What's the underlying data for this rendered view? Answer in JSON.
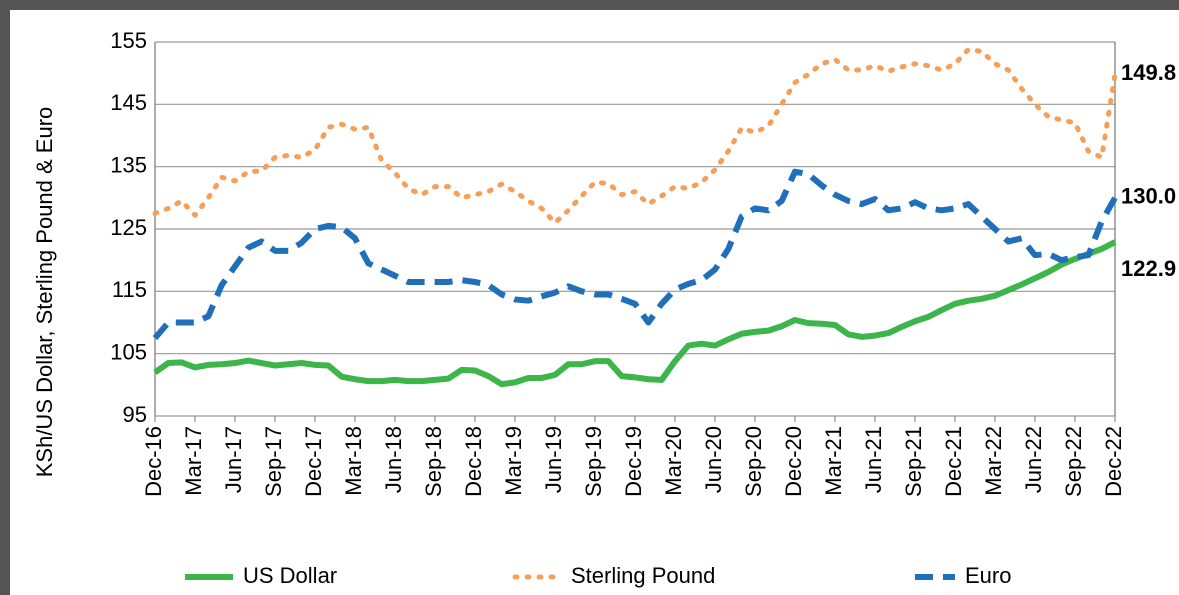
{
  "chart_data": {
    "type": "line",
    "y_label": "KSh/US Dollar, Sterling Pound & Euro",
    "categories": [
      "Dec-16",
      null,
      null,
      "Mar-17",
      null,
      null,
      "Jun-17",
      null,
      null,
      "Sep-17",
      null,
      null,
      "Dec-17",
      null,
      null,
      "Mar-18",
      null,
      null,
      "Jun-18",
      null,
      null,
      "Sep-18",
      null,
      null,
      "Dec-18",
      null,
      null,
      "Mar-19",
      null,
      null,
      "Jun-19",
      null,
      null,
      "Sep-19",
      null,
      null,
      "Dec-19",
      null,
      null,
      "Mar-20",
      null,
      null,
      "Jun-20",
      null,
      null,
      "Sep-20",
      null,
      null,
      "Dec-20",
      null,
      null,
      "Mar-21",
      null,
      null,
      "Jun-21",
      null,
      null,
      "Sep-21",
      null,
      null,
      "Dec-21",
      null,
      null,
      "Mar-22",
      null,
      null,
      "Jun-22",
      null,
      null,
      "Sep-22",
      null,
      null,
      "Dec-22"
    ],
    "series": [
      {
        "name": "US Dollar",
        "color": "#3cb54a",
        "style": "solid",
        "values": [
          102,
          103.5,
          103.6,
          102.8,
          103.2,
          103.3,
          103.5,
          103.9,
          103.5,
          103.1,
          103.3,
          103.5,
          103.2,
          103.1,
          101.3,
          100.9,
          100.6,
          100.6,
          100.8,
          100.6,
          100.6,
          100.8,
          101,
          102.4,
          102.3,
          101.4,
          100.1,
          100.4,
          101.1,
          101.1,
          101.6,
          103.3,
          103.3,
          103.8,
          103.8,
          101.4,
          101.2,
          100.9,
          100.8,
          103.8,
          106.3,
          106.6,
          106.3,
          107.3,
          108.2,
          108.5,
          108.7,
          109.4,
          110.4,
          109.9,
          109.8,
          109.6,
          108.1,
          107.7,
          107.9,
          108.3,
          109.3,
          110.2,
          110.9,
          112.0,
          113.0,
          113.5,
          113.8,
          114.3,
          115.2,
          116.1,
          117.1,
          118.1,
          119.3,
          120.2,
          121.0,
          121.8,
          122.9
        ],
        "value_labels": [
          null,
          null,
          null,
          null,
          null,
          null,
          null,
          null,
          null,
          null,
          null,
          null,
          null,
          null,
          null,
          null,
          null,
          null,
          null,
          null,
          null,
          null,
          null,
          null,
          null,
          null,
          null,
          null,
          null,
          null,
          null,
          null,
          null,
          null,
          null,
          null,
          null,
          null,
          null,
          null,
          null,
          null,
          null,
          null,
          null,
          null,
          null,
          null,
          null,
          null,
          null,
          null,
          null,
          null,
          null,
          null,
          null,
          null,
          null,
          null,
          null,
          null,
          null,
          null,
          null,
          null,
          null,
          null,
          null,
          null,
          null,
          null,
          "122.9"
        ]
      },
      {
        "name": "Sterling Pound",
        "color": "#f5a05a",
        "style": "dotted",
        "values": [
          127.5,
          128.3,
          129.5,
          127.2,
          130,
          133.3,
          132.7,
          134.2,
          134.3,
          136.5,
          136.8,
          136.5,
          137.7,
          141.3,
          141.8,
          141,
          141.3,
          136,
          134,
          131.5,
          130.5,
          131.8,
          131.8,
          130,
          130.5,
          131,
          132.2,
          131,
          129.5,
          128.3,
          126,
          128,
          130.3,
          132.5,
          132.3,
          130.5,
          131,
          129,
          130.3,
          131.8,
          131.5,
          132.5,
          134.5,
          137.5,
          141.2,
          140.5,
          141.5,
          145,
          148.5,
          149.8,
          151.5,
          152.2,
          150.5,
          150.5,
          151.2,
          150.3,
          151,
          151.5,
          151.2,
          150.5,
          151.5,
          153.8,
          153.5,
          151.5,
          150.5,
          147.5,
          145,
          143,
          142.5,
          142,
          137.5,
          136.5,
          149.8
        ],
        "value_labels": [
          null,
          null,
          null,
          null,
          null,
          null,
          null,
          null,
          null,
          null,
          null,
          null,
          null,
          null,
          null,
          null,
          null,
          null,
          null,
          null,
          null,
          null,
          null,
          null,
          null,
          null,
          null,
          null,
          null,
          null,
          null,
          null,
          null,
          null,
          null,
          null,
          null,
          null,
          null,
          null,
          null,
          null,
          null,
          null,
          null,
          null,
          null,
          null,
          null,
          null,
          null,
          null,
          null,
          null,
          null,
          null,
          null,
          null,
          null,
          null,
          null,
          null,
          null,
          null,
          null,
          null,
          null,
          null,
          null,
          null,
          null,
          null,
          "149.8"
        ]
      },
      {
        "name": "Euro",
        "color": "#1f6fba",
        "style": "dashed",
        "values": [
          107.5,
          110,
          110,
          110,
          111,
          116,
          119,
          122,
          123,
          121.5,
          121.5,
          122.8,
          125,
          125.5,
          125.3,
          123.5,
          119.5,
          118.5,
          117.5,
          116.5,
          116.5,
          116.5,
          116.5,
          116.8,
          116.5,
          116,
          114.5,
          113.7,
          113.5,
          114.2,
          114.8,
          115.8,
          115,
          114.5,
          114.5,
          113.8,
          113,
          110,
          113,
          115.3,
          116.2,
          116.8,
          118.5,
          121.8,
          127,
          128.3,
          128,
          129.5,
          134.2,
          133.8,
          132,
          130.5,
          129.5,
          129,
          129.8,
          128,
          128.3,
          129.3,
          128.3,
          128,
          128.3,
          129,
          127,
          125,
          123,
          123.5,
          120.8,
          121,
          120,
          120.5,
          120.8,
          126.2,
          130
        ],
        "value_labels": [
          null,
          null,
          null,
          null,
          null,
          null,
          null,
          null,
          null,
          null,
          null,
          null,
          null,
          null,
          null,
          null,
          null,
          null,
          null,
          null,
          null,
          null,
          null,
          null,
          null,
          null,
          null,
          null,
          null,
          null,
          null,
          null,
          null,
          null,
          null,
          null,
          null,
          null,
          null,
          null,
          null,
          null,
          null,
          null,
          null,
          null,
          null,
          null,
          null,
          null,
          null,
          null,
          null,
          null,
          null,
          null,
          null,
          null,
          null,
          null,
          null,
          null,
          null,
          null,
          null,
          null,
          null,
          null,
          null,
          null,
          null,
          null,
          "130.0"
        ]
      }
    ],
    "ylim": [
      95,
      155
    ],
    "yticks": [
      95,
      105,
      115,
      125,
      135,
      145,
      155
    ],
    "grid": true,
    "legend": "bottom"
  }
}
